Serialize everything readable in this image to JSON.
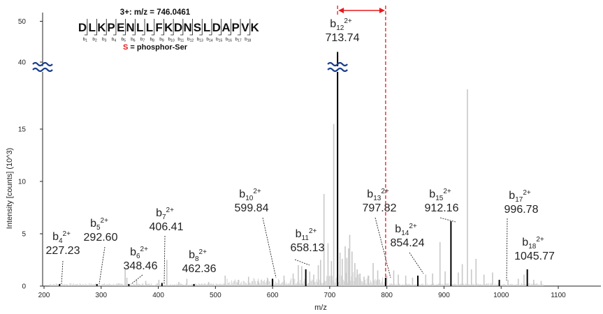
{
  "chart_data": {
    "type": "bar",
    "xlabel": "m/z",
    "ylabel": "Intensity [counts] (10^3)",
    "xlim": [
      195,
      1160
    ],
    "ylim": [
      0,
      50
    ],
    "axis_break": {
      "from": 19,
      "to": 38
    },
    "x_ticks": [
      "200",
      "300",
      "400",
      "500",
      "600",
      "700",
      "800",
      "900",
      "1000",
      "1100"
    ],
    "y_ticks": [
      {
        "value": 0,
        "label": "0"
      },
      {
        "value": 5,
        "label": "5"
      },
      {
        "value": 10,
        "label": "10"
      },
      {
        "value": 15,
        "label": "15"
      },
      {
        "value": 40,
        "label": "40"
      },
      {
        "value": 50,
        "label": "50"
      }
    ],
    "precursor": "3+: m/z = 746.0461",
    "sequence": [
      "D",
      "L",
      "K",
      "P",
      "E",
      "N",
      "L",
      "L",
      "F",
      "K",
      "D",
      "N",
      "S",
      "L",
      "D",
      "A",
      "P",
      "V",
      "K"
    ],
    "phospho_index": 12,
    "b_ion_labels": [
      "b1",
      "b2",
      "b3",
      "b4",
      "b5",
      "b6",
      "b7",
      "b8",
      "b9",
      "b10",
      "b11",
      "b12",
      "b13",
      "b14",
      "b15",
      "b16",
      "b17",
      "b18"
    ],
    "legend_symbol": "S",
    "legend_text": " = phosphor-Ser",
    "labeled_peaks": [
      {
        "ion": "b",
        "sub": "4",
        "charge": "2+",
        "mz_label": "227.23",
        "x": 227.23,
        "y": 0.2
      },
      {
        "ion": "b",
        "sub": "5",
        "charge": "2+",
        "mz_label": "292.60",
        "x": 292.6,
        "y": 0.2
      },
      {
        "ion": "b",
        "sub": "6",
        "charge": "2+",
        "mz_label": "348.46",
        "x": 348.46,
        "y": 0.2
      },
      {
        "ion": "b",
        "sub": "7",
        "charge": "2+",
        "mz_label": "406.41",
        "x": 406.41,
        "y": 0.3
      },
      {
        "ion": "b",
        "sub": "8",
        "charge": "2+",
        "mz_label": "462.36",
        "x": 462.36,
        "y": 0.2
      },
      {
        "ion": "b",
        "sub": "10",
        "charge": "2+",
        "mz_label": "599.84",
        "x": 599.84,
        "y": 0.7
      },
      {
        "ion": "b",
        "sub": "11",
        "charge": "2+",
        "mz_label": "658.13",
        "x": 658.13,
        "y": 1.6
      },
      {
        "ion": "b",
        "sub": "12",
        "charge": "2+",
        "mz_label": "713.74",
        "x": 713.74,
        "y": 42.5
      },
      {
        "ion": "b",
        "sub": "13",
        "charge": "2+",
        "mz_label": "797.82",
        "x": 797.82,
        "y": 0.8
      },
      {
        "ion": "b",
        "sub": "14",
        "charge": "2+",
        "mz_label": "854.24",
        "x": 854.24,
        "y": 1.0
      },
      {
        "ion": "b",
        "sub": "15",
        "charge": "2+",
        "mz_label": "912.16",
        "x": 912.16,
        "y": 6.2
      },
      {
        "ion": "b",
        "sub": "17",
        "charge": "2+",
        "mz_label": "996.78",
        "x": 996.78,
        "y": 0.6
      },
      {
        "ion": "b",
        "sub": "18",
        "charge": "2+",
        "mz_label": "1045.77",
        "x": 1045.77,
        "y": 1.6
      }
    ],
    "labeled_peak_color": "#000000",
    "other_peaks": [
      {
        "x": 342,
        "y": 1.7
      },
      {
        "x": 345,
        "y": 0.8
      },
      {
        "x": 362,
        "y": 0.6
      },
      {
        "x": 378,
        "y": 0.5
      },
      {
        "x": 401,
        "y": 0.6
      },
      {
        "x": 415,
        "y": 2.5
      },
      {
        "x": 436,
        "y": 0.4
      },
      {
        "x": 450,
        "y": 0.7
      },
      {
        "x": 488,
        "y": 0.4
      },
      {
        "x": 517,
        "y": 1.0
      },
      {
        "x": 540,
        "y": 0.6
      },
      {
        "x": 558,
        "y": 0.9
      },
      {
        "x": 575,
        "y": 0.5
      },
      {
        "x": 591,
        "y": 0.8
      },
      {
        "x": 620,
        "y": 1.0
      },
      {
        "x": 636,
        "y": 1.2
      },
      {
        "x": 645,
        "y": 2.0
      },
      {
        "x": 651,
        "y": 1.9
      },
      {
        "x": 665,
        "y": 1.4
      },
      {
        "x": 672,
        "y": 1.1
      },
      {
        "x": 680,
        "y": 2.0
      },
      {
        "x": 684,
        "y": 2.5
      },
      {
        "x": 690,
        "y": 8.8
      },
      {
        "x": 697,
        "y": 4.1
      },
      {
        "x": 703,
        "y": 2.4
      },
      {
        "x": 707,
        "y": 15.5
      },
      {
        "x": 718,
        "y": 3.2
      },
      {
        "x": 722,
        "y": 2.6
      },
      {
        "x": 727,
        "y": 3.8
      },
      {
        "x": 730,
        "y": 2.7
      },
      {
        "x": 733,
        "y": 3.6
      },
      {
        "x": 735,
        "y": 4.9
      },
      {
        "x": 739,
        "y": 3.3
      },
      {
        "x": 744,
        "y": 2.2
      },
      {
        "x": 748,
        "y": 1.6
      },
      {
        "x": 753,
        "y": 1.2
      },
      {
        "x": 760,
        "y": 0.9
      },
      {
        "x": 768,
        "y": 1.0
      },
      {
        "x": 776,
        "y": 2.2
      },
      {
        "x": 784,
        "y": 1.5
      },
      {
        "x": 800,
        "y": 1.0
      },
      {
        "x": 812,
        "y": 1.5
      },
      {
        "x": 820,
        "y": 1.1
      },
      {
        "x": 833,
        "y": 1.0
      },
      {
        "x": 845,
        "y": 0.8
      },
      {
        "x": 868,
        "y": 1.1
      },
      {
        "x": 880,
        "y": 1.2
      },
      {
        "x": 893,
        "y": 4.2
      },
      {
        "x": 902,
        "y": 1.4
      },
      {
        "x": 925,
        "y": 1.3
      },
      {
        "x": 932,
        "y": 2.1
      },
      {
        "x": 941,
        "y": 18.8
      },
      {
        "x": 948,
        "y": 1.6
      },
      {
        "x": 956,
        "y": 2.6
      },
      {
        "x": 970,
        "y": 1.1
      },
      {
        "x": 985,
        "y": 1.3
      },
      {
        "x": 1012,
        "y": 0.6
      },
      {
        "x": 1030,
        "y": 0.7
      },
      {
        "x": 1040,
        "y": 1.1
      },
      {
        "x": 1057,
        "y": 0.6
      },
      {
        "x": 1070,
        "y": 0.5
      }
    ],
    "other_peak_color": "#c8c8c8",
    "highlight_color": "#e8191b",
    "shift_bracket": [
      713.74,
      797.82
    ]
  }
}
